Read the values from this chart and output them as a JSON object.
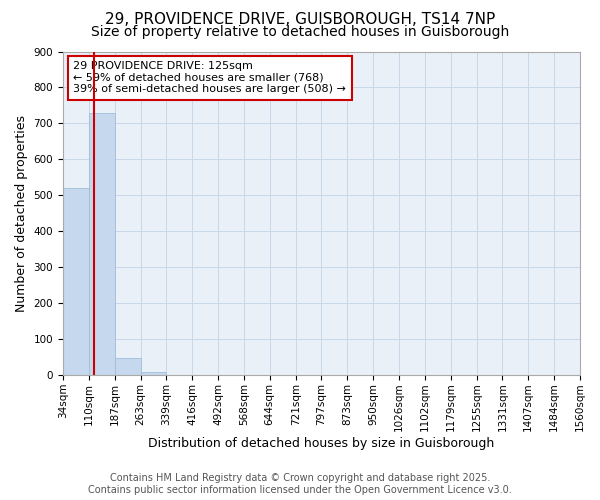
{
  "title_line1": "29, PROVIDENCE DRIVE, GUISBOROUGH, TS14 7NP",
  "title_line2": "Size of property relative to detached houses in Guisborough",
  "xlabel": "Distribution of detached houses by size in Guisborough",
  "ylabel": "Number of detached properties",
  "bin_edges": [
    34,
    110,
    187,
    263,
    339,
    416,
    492,
    568,
    644,
    721,
    797,
    873,
    950,
    1026,
    1102,
    1179,
    1255,
    1331,
    1407,
    1484,
    1560
  ],
  "bin_labels": [
    "34sqm",
    "110sqm",
    "187sqm",
    "263sqm",
    "339sqm",
    "416sqm",
    "492sqm",
    "568sqm",
    "644sqm",
    "721sqm",
    "797sqm",
    "873sqm",
    "950sqm",
    "1026sqm",
    "1102sqm",
    "1179sqm",
    "1255sqm",
    "1331sqm",
    "1407sqm",
    "1484sqm",
    "1560sqm"
  ],
  "counts": [
    520,
    730,
    47,
    9,
    0,
    0,
    0,
    0,
    0,
    0,
    0,
    0,
    0,
    0,
    0,
    0,
    0,
    0,
    0,
    0
  ],
  "bar_color": "#c5d8ed",
  "bar_edge_color": "#a0bdd8",
  "property_size": 125,
  "property_line_color": "#cc0000",
  "annotation_text": "29 PROVIDENCE DRIVE: 125sqm\n← 59% of detached houses are smaller (768)\n39% of semi-detached houses are larger (508) →",
  "annotation_box_color": "#cc0000",
  "annotation_text_color": "black",
  "grid_color": "#c8d8e8",
  "background_color": "#eaf0f8",
  "ylim": [
    0,
    900
  ],
  "yticks": [
    0,
    100,
    200,
    300,
    400,
    500,
    600,
    700,
    800,
    900
  ],
  "footer_text": "Contains HM Land Registry data © Crown copyright and database right 2025.\nContains public sector information licensed under the Open Government Licence v3.0.",
  "title_fontsize": 11,
  "subtitle_fontsize": 10,
  "axis_label_fontsize": 9,
  "tick_fontsize": 7.5,
  "annotation_fontsize": 8,
  "footer_fontsize": 7
}
